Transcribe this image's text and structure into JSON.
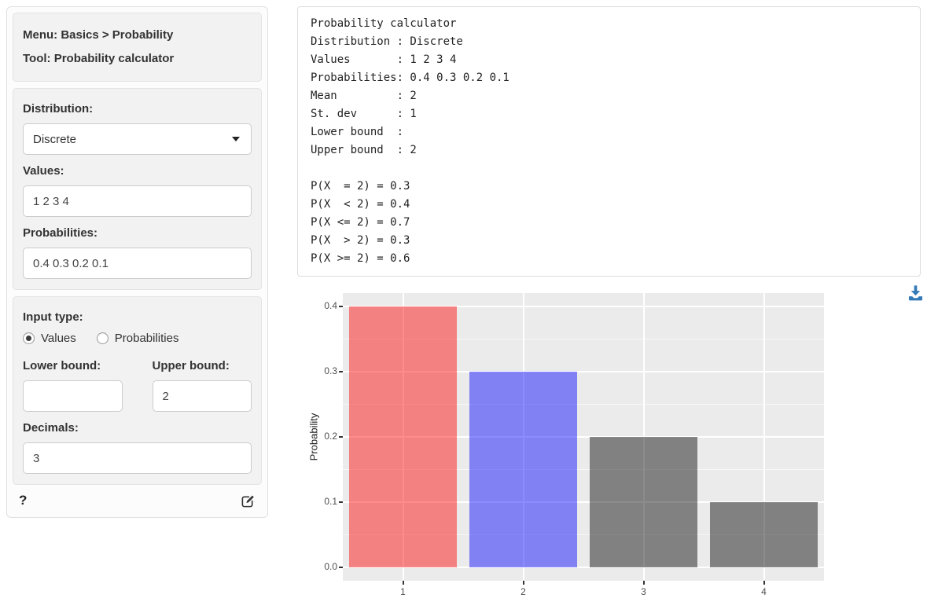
{
  "sidebar": {
    "menu_label": "Menu: Basics > Probability",
    "tool_label": "Tool: Probability calculator",
    "distribution": {
      "label": "Distribution:",
      "value": "Discrete"
    },
    "values": {
      "label": "Values:",
      "value": "1 2 3 4"
    },
    "probabilities": {
      "label": "Probabilities:",
      "value": "0.4 0.3 0.2 0.1"
    },
    "input_type": {
      "label": "Input type:",
      "options": [
        {
          "label": "Values",
          "selected": true
        },
        {
          "label": "Probabilities",
          "selected": false
        }
      ]
    },
    "lower_bound": {
      "label": "Lower bound:",
      "value": ""
    },
    "upper_bound": {
      "label": "Upper bound:",
      "value": "2"
    },
    "decimals": {
      "label": "Decimals:",
      "value": "3"
    },
    "footer": {
      "help_label": "?"
    }
  },
  "output": {
    "lines": [
      "Probability calculator",
      "Distribution : Discrete",
      "Values       : 1 2 3 4",
      "Probabilities: 0.4 0.3 0.2 0.1",
      "Mean         : 2",
      "St. dev      : 1",
      "Lower bound  : ",
      "Upper bound  : 2",
      "",
      "P(X  = 2) = 0.3",
      "P(X  < 2) = 0.4",
      "P(X <= 2) = 0.7",
      "P(X  > 2) = 0.3",
      "P(X >= 2) = 0.6"
    ]
  },
  "chart_data": {
    "type": "bar",
    "categories": [
      "1",
      "2",
      "3",
      "4"
    ],
    "values": [
      0.4,
      0.3,
      0.2,
      0.1
    ],
    "bar_colors": [
      "rgba(255,0,0,0.45)",
      "rgba(0,0,255,0.45)",
      "rgba(0,0,0,0.45)",
      "rgba(0,0,0,0.45)"
    ],
    "title": "",
    "xlabel": "",
    "ylabel": "Probability",
    "ylim": [
      0,
      0.4
    ],
    "yticks": [
      0.0,
      0.1,
      0.2,
      0.3,
      0.4
    ],
    "grid": true,
    "legend": "none",
    "panel_bg": "#EBEBEB",
    "grid_color": "#FFFFFF",
    "accent_download": "#337ab7"
  }
}
